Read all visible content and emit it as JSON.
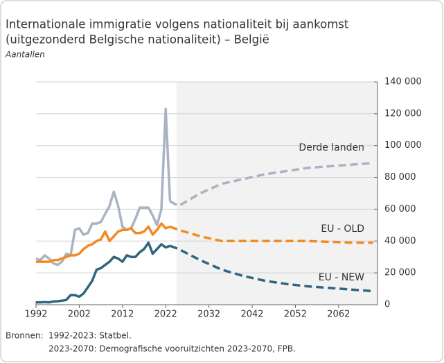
{
  "chart_data": {
    "type": "line",
    "title": "Internationale immigratie volgens nationaliteit bij aankomst",
    "title_line2": "(uitgezonderd Belgische nationaliteit) – België",
    "subtitle": "Aantallen",
    "x": [
      1992,
      1993,
      1994,
      1995,
      1996,
      1997,
      1998,
      1999,
      2000,
      2001,
      2002,
      2003,
      2004,
      2005,
      2006,
      2007,
      2008,
      2009,
      2010,
      2011,
      2012,
      2013,
      2014,
      2015,
      2016,
      2017,
      2018,
      2019,
      2020,
      2021,
      2022,
      2023
    ],
    "projection_x": [
      2023,
      2025,
      2030,
      2035,
      2040,
      2045,
      2050,
      2055,
      2060,
      2065,
      2070
    ],
    "projection_start": 2024.5,
    "series": [
      {
        "name": "Derde landen",
        "color": "#a9b3c1",
        "values": [
          29000,
          28000,
          31000,
          29000,
          26000,
          25000,
          27000,
          32000,
          31000,
          47000,
          48000,
          44000,
          45000,
          51000,
          51000,
          52000,
          57000,
          62000,
          71000,
          62000,
          49000,
          47000,
          48000,
          54000,
          61000,
          61000,
          61000,
          56000,
          50000,
          60000,
          123000,
          65000
        ],
        "projection_values": [
          65000,
          62000,
          70000,
          76000,
          79000,
          82000,
          84000,
          86000,
          87000,
          88000,
          89000
        ]
      },
      {
        "name": "EU - OLD",
        "color": "#f28a1f",
        "values": [
          27000,
          27000,
          27000,
          27000,
          28000,
          28000,
          29000,
          30000,
          31000,
          31000,
          32000,
          35000,
          37000,
          38000,
          40000,
          41000,
          46000,
          40000,
          43000,
          46000,
          47000,
          47000,
          48000,
          45000,
          45000,
          46000,
          49000,
          44000,
          47000,
          51000,
          48000,
          49000
        ],
        "projection_values": [
          49000,
          47000,
          43000,
          40000,
          40000,
          40000,
          40000,
          40000,
          39500,
          39000,
          39000
        ]
      },
      {
        "name": "EU - NEW",
        "color": "#2e6680",
        "values": [
          1500,
          1500,
          1600,
          1500,
          2000,
          2200,
          2500,
          3000,
          6000,
          6000,
          5000,
          7000,
          11000,
          15000,
          22000,
          23000,
          25000,
          27000,
          30000,
          29000,
          27000,
          31000,
          30000,
          30000,
          33000,
          35000,
          39000,
          32000,
          35000,
          38000,
          36000,
          37000
        ],
        "projection_values": [
          37000,
          35000,
          28000,
          22000,
          18000,
          15000,
          13000,
          11500,
          10500,
          9500,
          8500
        ]
      }
    ],
    "xlim": [
      1992,
      2071
    ],
    "xticks": [
      1992,
      2002,
      2012,
      2022,
      2032,
      2042,
      2052,
      2062
    ],
    "ylim": [
      0,
      140000
    ],
    "yticks": [
      0,
      {
        "value": 20000,
        "label": "20 000"
      },
      {
        "value": 40000,
        "label": "40 000"
      },
      {
        "value": 60000,
        "label": "60 000"
      },
      {
        "value": 80000,
        "label": "80 000"
      },
      {
        "value": 100000,
        "label": "100 000"
      },
      {
        "value": 120000,
        "label": "120 000"
      },
      {
        "value": 140000,
        "label": "140 000"
      }
    ],
    "grid": true,
    "source_label": "Bronnen:",
    "sources": [
      "1992-2023: Statbel.",
      "2023-2070: Demografische vooruitzichten 2023-2070, FPB."
    ]
  }
}
